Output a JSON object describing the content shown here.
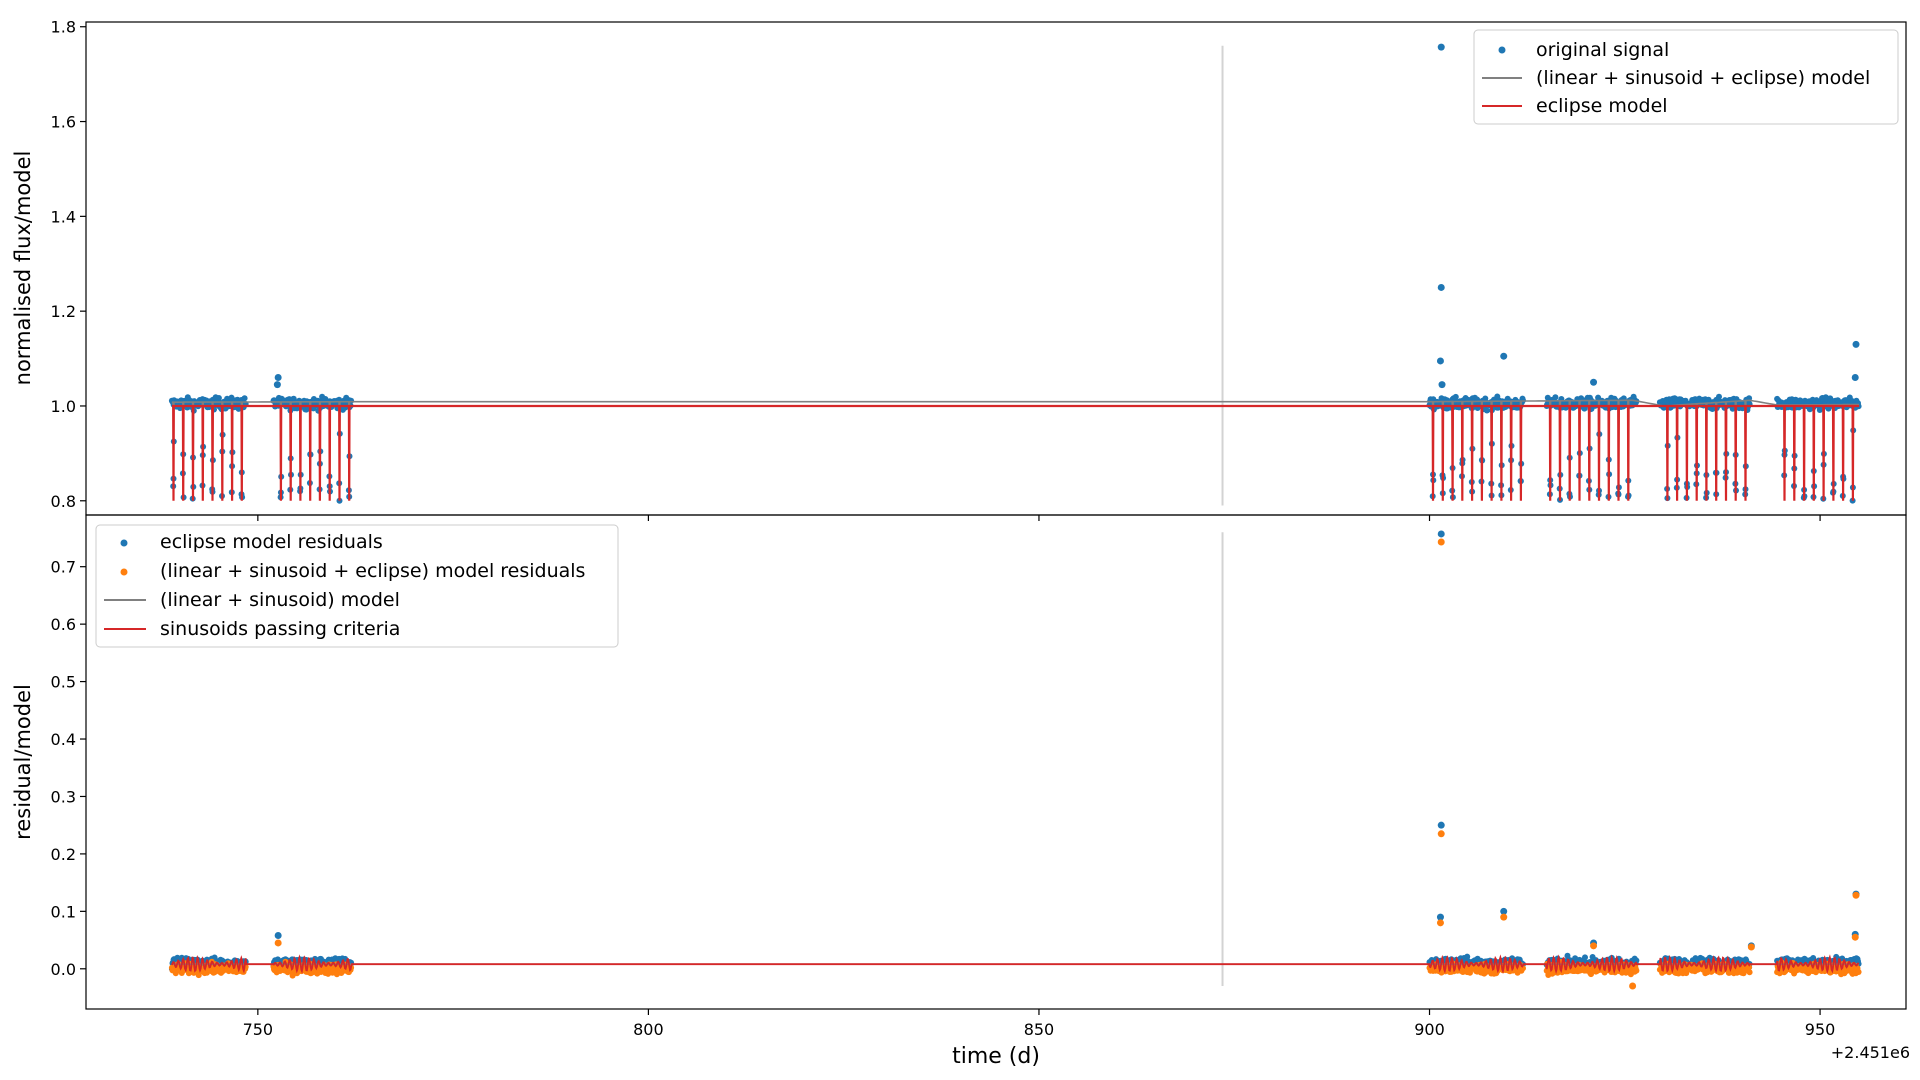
{
  "figure": {
    "offset_label": "+2.451e6",
    "xlabel": "time (d)"
  },
  "colors": {
    "blue": "#1f77b4",
    "orange": "#ff7f0e",
    "gray": "#808080",
    "red": "#d62728",
    "marker_line": "#d3d3d3"
  },
  "chart_data": [
    {
      "type": "scatter",
      "panel": "top",
      "ylabel": "normalised flux/model",
      "xlim": [
        728,
        961
      ],
      "ylim": [
        0.77,
        1.81
      ],
      "xticks": [
        750,
        800,
        850,
        900,
        950
      ],
      "xticklabels": [
        "750",
        "800",
        "850",
        "900",
        "950"
      ],
      "yticks": [
        0.8,
        1.0,
        1.2,
        1.4,
        1.6,
        1.8
      ],
      "yticklabels": [
        "0.8",
        "1.0",
        "1.2",
        "1.4",
        "1.6",
        "1.8"
      ],
      "legend_position": "top-right",
      "legend": [
        "original signal",
        "(linear + sinusoid + eclipse) model",
        "eclipse model"
      ],
      "vertical_line": {
        "x": 873.5,
        "y_range": [
          0.79,
          1.76
        ]
      },
      "segments": [
        [
          739.0,
          748.5
        ],
        [
          752.0,
          762.0
        ],
        [
          900.0,
          912.0
        ],
        [
          915.0,
          926.5
        ],
        [
          929.5,
          941.0
        ],
        [
          944.5,
          955.0
        ]
      ],
      "eclipse": {
        "first_time": 739.2,
        "period": 1.25,
        "baseline": 1.0,
        "depth_min": 0.8
      },
      "series": [
        {
          "name": "original signal",
          "style": "points",
          "baseline": 1.005,
          "scatter": 0.012
        },
        {
          "name": "(linear + sinusoid + eclipse) model",
          "style": "line",
          "points": [
            [
              739,
              1.008
            ],
            [
              762,
              1.009
            ],
            [
              900,
              1.009
            ],
            [
              926,
              1.012
            ],
            [
              930,
              1.0
            ],
            [
              941,
              1.012
            ],
            [
              944.5,
              1.002
            ],
            [
              955,
              1.003
            ]
          ]
        },
        {
          "name": "eclipse model",
          "style": "line",
          "baseline": 1.0
        }
      ],
      "outliers": [
        [
          901.5,
          1.757
        ],
        [
          901.5,
          1.25
        ],
        [
          901.4,
          1.095
        ],
        [
          909.5,
          1.105
        ],
        [
          921.0,
          1.05
        ],
        [
          954.6,
          1.13
        ],
        [
          954.5,
          1.06
        ],
        [
          752.6,
          1.06
        ],
        [
          752.5,
          1.045
        ],
        [
          901.6,
          1.045
        ]
      ]
    },
    {
      "type": "scatter",
      "panel": "bottom",
      "ylabel": "residual/model",
      "xlim": [
        728,
        961
      ],
      "ylim": [
        -0.07,
        0.79
      ],
      "xticks": [
        750,
        800,
        850,
        900,
        950
      ],
      "xticklabels": [
        "750",
        "800",
        "850",
        "900",
        "950"
      ],
      "yticks": [
        0.0,
        0.1,
        0.2,
        0.3,
        0.4,
        0.5,
        0.6,
        0.7
      ],
      "yticklabels": [
        "0.0",
        "0.1",
        "0.2",
        "0.3",
        "0.4",
        "0.5",
        "0.6",
        "0.7"
      ],
      "legend_position": "top-left",
      "legend": [
        "eclipse model residuals",
        "(linear + sinusoid + eclipse) model residuals",
        "(linear + sinusoid) model",
        "sinusoids passing criteria"
      ],
      "vertical_line": {
        "x": 873.5,
        "y_range": [
          -0.03,
          0.76
        ]
      },
      "segments": [
        [
          739.0,
          748.5
        ],
        [
          752.0,
          762.0
        ],
        [
          900.0,
          912.0
        ],
        [
          915.0,
          926.5
        ],
        [
          929.5,
          941.0
        ],
        [
          944.5,
          955.0
        ]
      ],
      "series": [
        {
          "name": "eclipse model residuals",
          "style": "points",
          "baseline": 0.01,
          "scatter": 0.009
        },
        {
          "name": "(linear + sinusoid + eclipse) model residuals",
          "style": "points",
          "baseline": 0.0,
          "scatter": 0.009
        },
        {
          "name": "(linear + sinusoid) model",
          "style": "line",
          "points": [
            [
              739,
              0.008
            ],
            [
              955,
              0.008
            ]
          ]
        },
        {
          "name": "sinusoids passing criteria",
          "style": "line",
          "baseline": 0.008,
          "amplitude": 0.012
        }
      ],
      "outliers_blue": [
        [
          901.5,
          0.757
        ],
        [
          901.5,
          0.25
        ],
        [
          901.4,
          0.09
        ],
        [
          909.5,
          0.1
        ],
        [
          921.0,
          0.045
        ],
        [
          954.6,
          0.13
        ],
        [
          954.5,
          0.06
        ],
        [
          752.6,
          0.058
        ],
        [
          941.2,
          0.04
        ]
      ],
      "outliers_orange": [
        [
          901.5,
          0.743
        ],
        [
          901.5,
          0.235
        ],
        [
          901.4,
          0.08
        ],
        [
          909.5,
          0.09
        ],
        [
          921.0,
          0.04
        ],
        [
          954.6,
          0.128
        ],
        [
          954.5,
          0.055
        ],
        [
          752.6,
          0.045
        ],
        [
          941.2,
          0.038
        ],
        [
          926.0,
          -0.03
        ]
      ]
    }
  ]
}
